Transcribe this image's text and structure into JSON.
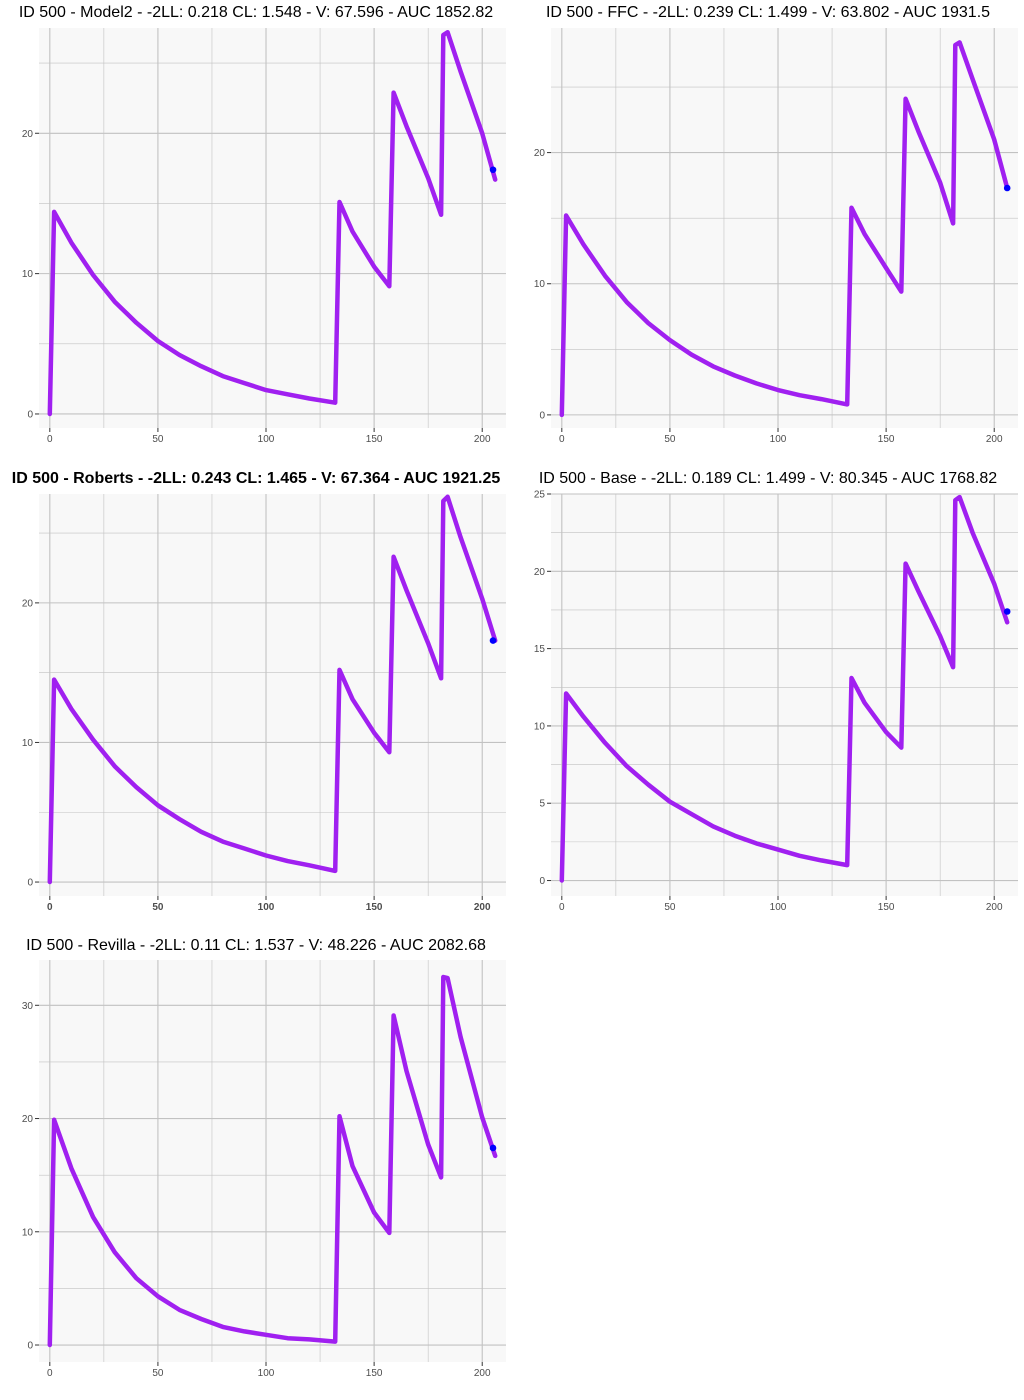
{
  "colors": {
    "panel_background": "#f8f8f8",
    "gridline": "#c2c2c2",
    "curve": "#a020f0",
    "observation": "#0000ff",
    "tick_text": "#4d4d4d"
  },
  "chart_data": [
    {
      "type": "line",
      "title": "ID 500 - Model2 - -2LL: 0.218 CL: 1.548 - V: 67.596 - AUC 1852.82",
      "title_bold": false,
      "xlim": [
        -5,
        211
      ],
      "ylim": [
        -1,
        27.5
      ],
      "x_ticks": [
        0,
        50,
        100,
        150,
        200
      ],
      "y_ticks": [
        0,
        10,
        20
      ],
      "grid": true,
      "series": [
        {
          "x": [
            0,
            2,
            10,
            20,
            30,
            40,
            50,
            60,
            70,
            80,
            90,
            100,
            110,
            120,
            132,
            134,
            140,
            150,
            157,
            159,
            165,
            175,
            181,
            182,
            184,
            190,
            200,
            206
          ],
          "y": [
            0,
            14.4,
            12.2,
            9.9,
            8.0,
            6.5,
            5.2,
            4.2,
            3.4,
            2.7,
            2.2,
            1.7,
            1.4,
            1.1,
            0.8,
            15.1,
            13.0,
            10.5,
            9.1,
            22.9,
            20.5,
            16.8,
            14.2,
            27.0,
            27.2,
            24.4,
            20.0,
            16.7
          ]
        }
      ],
      "observations": [
        {
          "x": 205,
          "y": 17.4
        }
      ]
    },
    {
      "type": "line",
      "title": "ID 500 - FFC - -2LL: 0.239 CL: 1.499 - V: 63.802 - AUC 1931.5",
      "title_bold": false,
      "xlim": [
        -5,
        211
      ],
      "ylim": [
        -1,
        29.5
      ],
      "x_ticks": [
        0,
        50,
        100,
        150,
        200
      ],
      "y_ticks": [
        0,
        10,
        20
      ],
      "grid": true,
      "series": [
        {
          "x": [
            0,
            2,
            10,
            20,
            30,
            40,
            50,
            60,
            70,
            80,
            90,
            100,
            110,
            120,
            132,
            134,
            140,
            150,
            157,
            159,
            165,
            175,
            181,
            182,
            184,
            190,
            200,
            206
          ],
          "y": [
            0,
            15.2,
            13.0,
            10.6,
            8.6,
            7.0,
            5.7,
            4.6,
            3.7,
            3.0,
            2.4,
            1.9,
            1.5,
            1.2,
            0.8,
            15.8,
            13.8,
            11.2,
            9.4,
            24.1,
            21.6,
            17.7,
            14.6,
            28.2,
            28.4,
            25.6,
            21.0,
            17.3
          ]
        }
      ],
      "observations": [
        {
          "x": 206,
          "y": 17.3
        }
      ]
    },
    {
      "type": "line",
      "title": "ID 500 - Roberts - -2LL: 0.243 CL: 1.465 - V: 67.364 - AUC 1921.25",
      "title_bold": true,
      "xlim": [
        -5,
        211
      ],
      "ylim": [
        -1,
        27.8
      ],
      "x_ticks": [
        0,
        50,
        100,
        150,
        200
      ],
      "y_ticks": [
        0,
        10,
        20
      ],
      "grid": true,
      "series": [
        {
          "x": [
            0,
            2,
            10,
            20,
            30,
            40,
            50,
            60,
            70,
            80,
            90,
            100,
            110,
            120,
            132,
            134,
            140,
            150,
            157,
            159,
            165,
            175,
            181,
            182,
            184,
            190,
            200,
            206
          ],
          "y": [
            0,
            14.5,
            12.4,
            10.2,
            8.3,
            6.8,
            5.5,
            4.5,
            3.6,
            2.9,
            2.4,
            1.9,
            1.5,
            1.2,
            0.8,
            15.2,
            13.1,
            10.7,
            9.3,
            23.3,
            20.9,
            17.1,
            14.6,
            27.3,
            27.6,
            24.7,
            20.3,
            17.3
          ]
        }
      ],
      "observations": [
        {
          "x": 205,
          "y": 17.3
        }
      ]
    },
    {
      "type": "line",
      "title": "ID 500 - Base - -2LL: 0.189 CL: 1.499 - V: 80.345 - AUC 1768.82",
      "title_bold": false,
      "xlim": [
        -5,
        211
      ],
      "ylim": [
        -1,
        25
      ],
      "x_ticks": [
        0,
        50,
        100,
        150,
        200
      ],
      "y_ticks": [
        0,
        5,
        10,
        15,
        20,
        25
      ],
      "grid": true,
      "series": [
        {
          "x": [
            0,
            2,
            10,
            20,
            30,
            40,
            50,
            60,
            70,
            80,
            90,
            100,
            110,
            120,
            132,
            134,
            140,
            150,
            157,
            159,
            165,
            175,
            181,
            182,
            184,
            190,
            200,
            206
          ],
          "y": [
            0,
            12.1,
            10.6,
            8.9,
            7.4,
            6.2,
            5.1,
            4.3,
            3.5,
            2.9,
            2.4,
            2.0,
            1.6,
            1.3,
            1.0,
            13.1,
            11.5,
            9.6,
            8.6,
            20.5,
            18.7,
            15.8,
            13.8,
            24.6,
            24.8,
            22.5,
            19.2,
            16.7
          ]
        }
      ],
      "observations": [
        {
          "x": 206,
          "y": 17.4
        }
      ]
    },
    {
      "type": "line",
      "title": "ID 500 - Revilla - -2LL: 0.11 CL: 1.537 - V: 48.226 - AUC 2082.68",
      "title_bold": false,
      "xlim": [
        -5,
        211
      ],
      "ylim": [
        -1.5,
        34
      ],
      "x_ticks": [
        0,
        50,
        100,
        150,
        200
      ],
      "y_ticks": [
        0,
        10,
        20,
        30
      ],
      "grid": true,
      "series": [
        {
          "x": [
            0,
            2,
            10,
            20,
            30,
            40,
            50,
            60,
            70,
            80,
            90,
            100,
            110,
            120,
            132,
            134,
            140,
            150,
            157,
            159,
            165,
            175,
            181,
            182,
            184,
            190,
            200,
            206
          ],
          "y": [
            0,
            19.9,
            15.6,
            11.3,
            8.2,
            5.9,
            4.3,
            3.1,
            2.3,
            1.6,
            1.2,
            0.9,
            0.6,
            0.5,
            0.3,
            20.2,
            15.8,
            11.7,
            9.9,
            29.1,
            24.2,
            17.7,
            14.8,
            32.5,
            32.4,
            27.2,
            20.1,
            16.7
          ]
        }
      ],
      "observations": [
        {
          "x": 205,
          "y": 17.4
        }
      ]
    }
  ]
}
